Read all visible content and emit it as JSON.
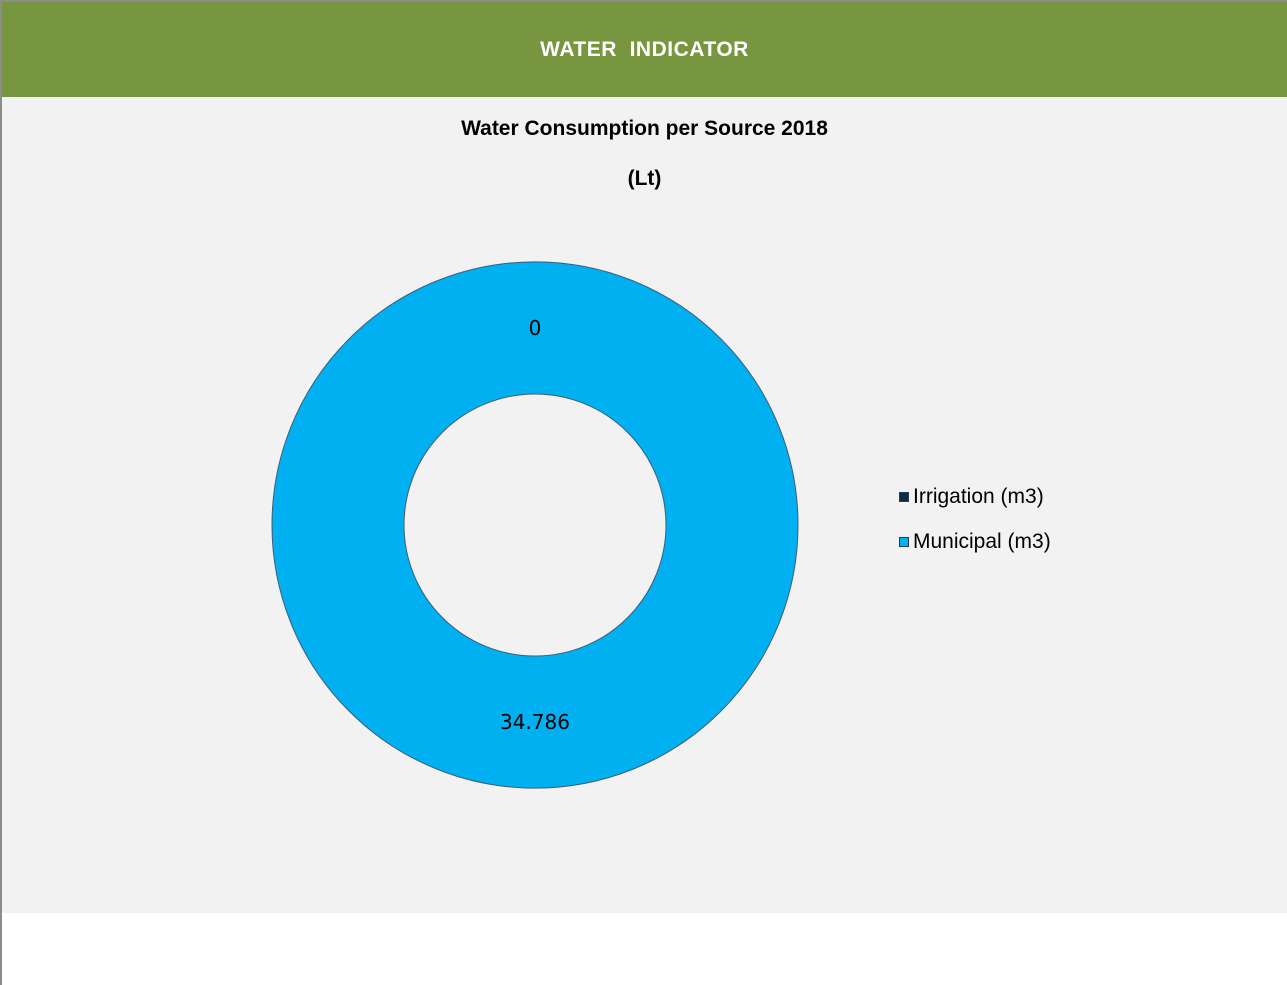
{
  "header": {
    "title": "WATER  INDICATOR"
  },
  "colors": {
    "header_bg": "#78963f",
    "chart_bg": "#f2f2f2",
    "irrigation": "#0f2d3d",
    "municipal": "#00b0f0"
  },
  "chart_data": {
    "type": "pie",
    "variant": "doughnut",
    "title_line1": "Water Consumption per Source 2018",
    "title_line2": "(Lt)",
    "legend_placement": "right",
    "series": [
      {
        "name": "Irrigation (m3)",
        "value": 0,
        "label": "0"
      },
      {
        "name": "Municipal (m3)",
        "value": 34.786,
        "label": "34.786"
      }
    ]
  }
}
